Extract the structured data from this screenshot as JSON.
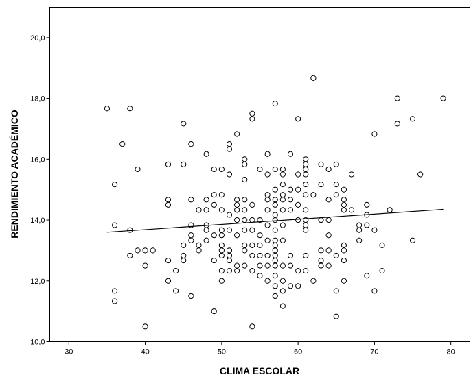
{
  "chart_data": {
    "type": "scatter",
    "title": "",
    "xlabel": "CLIMA ESCOLAR",
    "ylabel": "RENDIMIENTO ACADÉMICO",
    "xlim": [
      27.5,
      82.5
    ],
    "ylim": [
      10.0,
      21.0
    ],
    "x_ticks": [
      30,
      40,
      50,
      60,
      70,
      80
    ],
    "x_tick_labels": [
      "30",
      "40",
      "50",
      "60",
      "70",
      "80"
    ],
    "y_ticks": [
      10.0,
      12.0,
      14.0,
      16.0,
      18.0,
      20.0
    ],
    "y_tick_labels": [
      "10,0",
      "12,0",
      "14,0",
      "16,0",
      "18,0",
      "20,0"
    ],
    "grid": false,
    "fit_line": {
      "x": [
        35,
        79
      ],
      "y": [
        13.6,
        14.35
      ]
    },
    "points": [
      [
        35,
        17.67
      ],
      [
        36,
        15.17
      ],
      [
        36,
        13.83
      ],
      [
        36,
        11.67
      ],
      [
        36,
        11.33
      ],
      [
        37,
        16.5
      ],
      [
        38,
        17.67
      ],
      [
        38,
        13.67
      ],
      [
        38,
        12.83
      ],
      [
        39,
        15.67
      ],
      [
        39,
        13.0
      ],
      [
        40,
        13.0
      ],
      [
        40,
        12.5
      ],
      [
        40,
        10.5
      ],
      [
        41,
        13.0
      ],
      [
        43,
        15.83
      ],
      [
        43,
        14.67
      ],
      [
        43,
        14.5
      ],
      [
        43,
        12.67
      ],
      [
        43,
        12.0
      ],
      [
        44,
        12.33
      ],
      [
        44,
        11.67
      ],
      [
        45,
        17.17
      ],
      [
        45,
        15.83
      ],
      [
        45,
        13.17
      ],
      [
        45,
        12.83
      ],
      [
        45,
        12.67
      ],
      [
        46,
        16.5
      ],
      [
        46,
        14.67
      ],
      [
        46,
        13.83
      ],
      [
        46,
        13.5
      ],
      [
        46,
        13.33
      ],
      [
        46,
        11.5
      ],
      [
        47,
        14.33
      ],
      [
        47,
        13.17
      ],
      [
        47,
        13.0
      ],
      [
        48,
        16.17
      ],
      [
        48,
        14.67
      ],
      [
        48,
        14.33
      ],
      [
        48,
        13.83
      ],
      [
        48,
        13.67
      ],
      [
        48,
        13.33
      ],
      [
        49,
        15.67
      ],
      [
        49,
        14.83
      ],
      [
        49,
        14.5
      ],
      [
        49,
        13.5
      ],
      [
        49,
        12.67
      ],
      [
        49,
        11.0
      ],
      [
        50,
        15.67
      ],
      [
        50,
        14.83
      ],
      [
        50,
        14.33
      ],
      [
        50,
        13.67
      ],
      [
        50,
        13.5
      ],
      [
        50,
        13.17
      ],
      [
        50,
        13.0
      ],
      [
        50,
        12.83
      ],
      [
        50,
        12.33
      ],
      [
        50,
        12.0
      ],
      [
        51,
        16.5
      ],
      [
        51,
        16.33
      ],
      [
        51,
        15.5
      ],
      [
        51,
        14.17
      ],
      [
        51,
        13.67
      ],
      [
        51,
        13.0
      ],
      [
        51,
        12.83
      ],
      [
        51,
        12.67
      ],
      [
        51,
        12.33
      ],
      [
        52,
        16.83
      ],
      [
        52,
        14.67
      ],
      [
        52,
        14.5
      ],
      [
        52,
        14.33
      ],
      [
        52,
        14.0
      ],
      [
        52,
        13.5
      ],
      [
        52,
        12.5
      ],
      [
        52,
        12.33
      ],
      [
        53,
        16.0
      ],
      [
        53,
        15.83
      ],
      [
        53,
        15.33
      ],
      [
        53,
        14.67
      ],
      [
        53,
        14.33
      ],
      [
        53,
        14.0
      ],
      [
        53,
        13.67
      ],
      [
        53,
        13.17
      ],
      [
        53,
        13.0
      ],
      [
        53,
        12.5
      ],
      [
        54,
        17.5
      ],
      [
        54,
        17.33
      ],
      [
        54,
        14.5
      ],
      [
        54,
        14.0
      ],
      [
        54,
        13.67
      ],
      [
        54,
        13.17
      ],
      [
        54,
        12.83
      ],
      [
        54,
        12.33
      ],
      [
        54,
        10.5
      ],
      [
        55,
        15.67
      ],
      [
        55,
        14.0
      ],
      [
        55,
        13.5
      ],
      [
        55,
        13.17
      ],
      [
        55,
        12.83
      ],
      [
        55,
        12.5
      ],
      [
        55,
        12.17
      ],
      [
        56,
        16.17
      ],
      [
        56,
        15.5
      ],
      [
        56,
        14.83
      ],
      [
        56,
        14.67
      ],
      [
        56,
        14.33
      ],
      [
        56,
        13.83
      ],
      [
        56,
        13.33
      ],
      [
        56,
        12.83
      ],
      [
        56,
        12.5
      ],
      [
        56,
        12.0
      ],
      [
        57,
        17.83
      ],
      [
        57,
        15.67
      ],
      [
        57,
        15.0
      ],
      [
        57,
        14.67
      ],
      [
        57,
        14.5
      ],
      [
        57,
        14.17
      ],
      [
        57,
        14.0
      ],
      [
        57,
        13.67
      ],
      [
        57,
        13.33
      ],
      [
        57,
        13.17
      ],
      [
        57,
        13.0
      ],
      [
        57,
        12.83
      ],
      [
        57,
        12.67
      ],
      [
        57,
        12.5
      ],
      [
        57,
        12.17
      ],
      [
        57,
        11.83
      ],
      [
        57,
        11.5
      ],
      [
        58,
        15.67
      ],
      [
        58,
        15.5
      ],
      [
        58,
        15.17
      ],
      [
        58,
        14.83
      ],
      [
        58,
        14.67
      ],
      [
        58,
        14.33
      ],
      [
        58,
        13.83
      ],
      [
        58,
        13.33
      ],
      [
        58,
        12.5
      ],
      [
        58,
        12.0
      ],
      [
        58,
        11.67
      ],
      [
        58,
        11.17
      ],
      [
        59,
        16.17
      ],
      [
        59,
        15.0
      ],
      [
        59,
        14.67
      ],
      [
        59,
        14.33
      ],
      [
        59,
        12.83
      ],
      [
        59,
        12.5
      ],
      [
        59,
        11.83
      ],
      [
        60,
        17.33
      ],
      [
        60,
        15.5
      ],
      [
        60,
        15.0
      ],
      [
        60,
        14.5
      ],
      [
        60,
        14.0
      ],
      [
        60,
        12.33
      ],
      [
        60,
        11.83
      ],
      [
        61,
        16.0
      ],
      [
        61,
        15.83
      ],
      [
        61,
        15.67
      ],
      [
        61,
        15.5
      ],
      [
        61,
        15.17
      ],
      [
        61,
        14.83
      ],
      [
        61,
        14.33
      ],
      [
        61,
        14.0
      ],
      [
        61,
        13.83
      ],
      [
        61,
        13.67
      ],
      [
        61,
        12.83
      ],
      [
        61,
        12.33
      ],
      [
        62,
        18.67
      ],
      [
        62,
        14.83
      ],
      [
        62,
        12.0
      ],
      [
        63,
        15.83
      ],
      [
        63,
        15.17
      ],
      [
        63,
        14.0
      ],
      [
        63,
        13.0
      ],
      [
        63,
        12.67
      ],
      [
        63,
        12.5
      ],
      [
        64,
        15.67
      ],
      [
        64,
        14.67
      ],
      [
        64,
        14.0
      ],
      [
        64,
        13.5
      ],
      [
        64,
        13.0
      ],
      [
        64,
        12.5
      ],
      [
        65,
        15.83
      ],
      [
        65,
        15.17
      ],
      [
        65,
        14.83
      ],
      [
        65,
        12.83
      ],
      [
        65,
        11.67
      ],
      [
        65,
        10.83
      ],
      [
        66,
        15.0
      ],
      [
        66,
        14.67
      ],
      [
        66,
        14.5
      ],
      [
        66,
        14.33
      ],
      [
        66,
        13.17
      ],
      [
        66,
        13.0
      ],
      [
        66,
        12.67
      ],
      [
        66,
        12.0
      ],
      [
        67,
        15.5
      ],
      [
        67,
        14.33
      ],
      [
        68,
        13.83
      ],
      [
        68,
        13.67
      ],
      [
        68,
        13.33
      ],
      [
        69,
        14.5
      ],
      [
        69,
        14.17
      ],
      [
        69,
        13.83
      ],
      [
        69,
        12.17
      ],
      [
        70,
        16.83
      ],
      [
        70,
        13.67
      ],
      [
        70,
        11.67
      ],
      [
        71,
        13.17
      ],
      [
        71,
        12.33
      ],
      [
        72,
        14.33
      ],
      [
        73,
        18.0
      ],
      [
        73,
        17.17
      ],
      [
        75,
        17.33
      ],
      [
        75,
        13.33
      ],
      [
        76,
        15.5
      ],
      [
        79,
        18.0
      ]
    ]
  }
}
